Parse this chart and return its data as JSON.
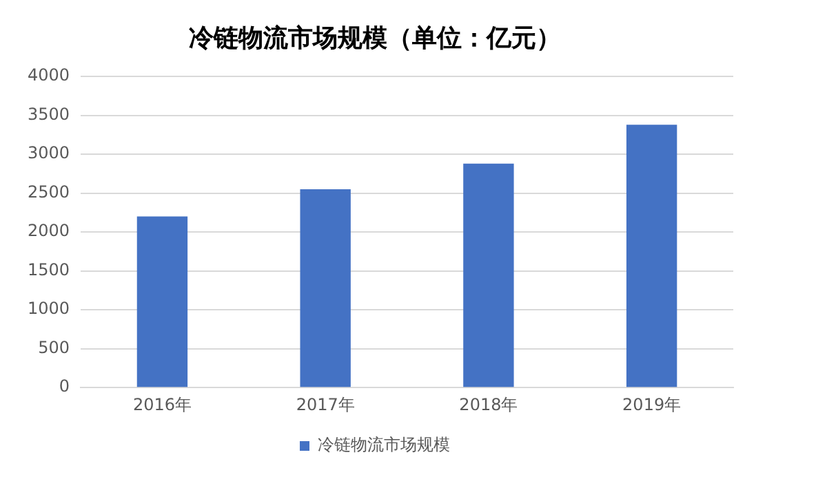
{
  "chart_data": {
    "type": "bar",
    "title": "冷链物流市场规模（单位：亿元）",
    "categories": [
      "2016年",
      "2017年",
      "2018年",
      "2019年"
    ],
    "series": [
      {
        "name": "冷链物流市场规模",
        "color": "#4472c4",
        "values": [
          2200,
          2550,
          2880,
          3380
        ]
      }
    ],
    "ylim": [
      0,
      4000
    ],
    "yticks": [
      0,
      500,
      1000,
      1500,
      2000,
      2500,
      3000,
      3500,
      4000
    ],
    "grid": "y",
    "legend": "bottom"
  }
}
